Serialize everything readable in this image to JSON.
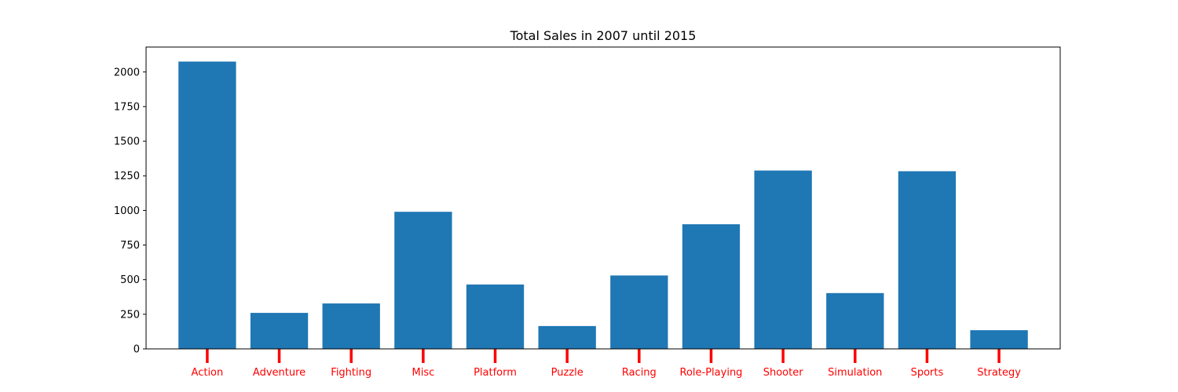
{
  "chart_data": {
    "type": "bar",
    "title": "Total Sales in 2007 until 2015",
    "xlabel": "",
    "ylabel": "",
    "categories": [
      "Action",
      "Adventure",
      "Fighting",
      "Misc",
      "Platform",
      "Puzzle",
      "Racing",
      "Role-Playing",
      "Shooter",
      "Simulation",
      "Sports",
      "Strategy"
    ],
    "values": [
      2075,
      260,
      328,
      990,
      465,
      165,
      530,
      900,
      1288,
      403,
      1283,
      135
    ],
    "ylim": [
      0,
      2180
    ],
    "yticks": [
      "0",
      "250",
      "500",
      "750",
      "1000",
      "1250",
      "1500",
      "1750",
      "2000"
    ],
    "grid": false,
    "bar_color": "#1f77b4",
    "xtick_color": "#ff0000"
  }
}
